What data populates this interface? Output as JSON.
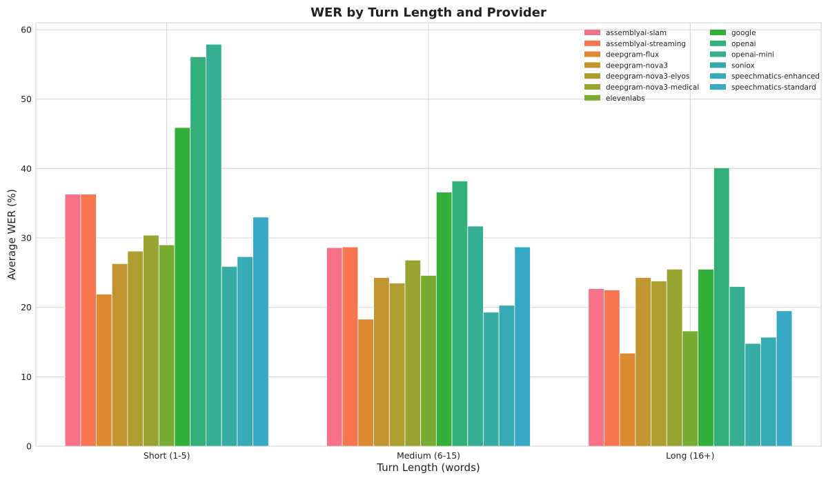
{
  "chart_data": {
    "type": "bar",
    "title": "WER by Turn Length and Provider",
    "xlabel": "Turn Length (words)",
    "ylabel": "Average WER (%)",
    "ylim": [
      0,
      61
    ],
    "yticks": [
      0,
      10,
      20,
      30,
      40,
      50,
      60
    ],
    "grid": true,
    "legend_position": "top-right",
    "legend_columns": 2,
    "categories": [
      "Short (1-5)",
      "Medium (6-15)",
      "Long (16+)"
    ],
    "series": [
      {
        "name": "assemblyai-slam",
        "color": "#f77189",
        "values": [
          36.3,
          28.6,
          22.7
        ]
      },
      {
        "name": "assemblyai-streaming",
        "color": "#f7754f",
        "values": [
          36.3,
          28.7,
          22.5
        ]
      },
      {
        "name": "deepgram-flux",
        "color": "#dc8932",
        "values": [
          21.9,
          18.3,
          13.4
        ]
      },
      {
        "name": "deepgram-nova3",
        "color": "#c39532",
        "values": [
          26.3,
          24.3,
          24.3
        ]
      },
      {
        "name": "deepgram-nova3-elyos",
        "color": "#ae9d31",
        "values": [
          28.1,
          23.5,
          23.8
        ]
      },
      {
        "name": "deepgram-nova3-medical",
        "color": "#97a431",
        "values": [
          30.4,
          26.8,
          25.5
        ]
      },
      {
        "name": "elevenlabs",
        "color": "#77ab31",
        "values": [
          29.0,
          24.6,
          16.6
        ]
      },
      {
        "name": "google",
        "color": "#33b039",
        "values": [
          45.9,
          36.6,
          25.5
        ]
      },
      {
        "name": "openai",
        "color": "#33b07a",
        "values": [
          56.1,
          38.2,
          40.1
        ]
      },
      {
        "name": "openai-mini",
        "color": "#35ae93",
        "values": [
          57.9,
          31.7,
          23.0
        ]
      },
      {
        "name": "soniox",
        "color": "#36ada4",
        "values": [
          25.9,
          19.3,
          14.8
        ]
      },
      {
        "name": "speechmatics-enhanced",
        "color": "#37abb4",
        "values": [
          27.3,
          20.3,
          15.7
        ]
      },
      {
        "name": "speechmatics-standard",
        "color": "#38a9c5",
        "values": [
          33.0,
          28.7,
          19.5
        ]
      }
    ]
  }
}
